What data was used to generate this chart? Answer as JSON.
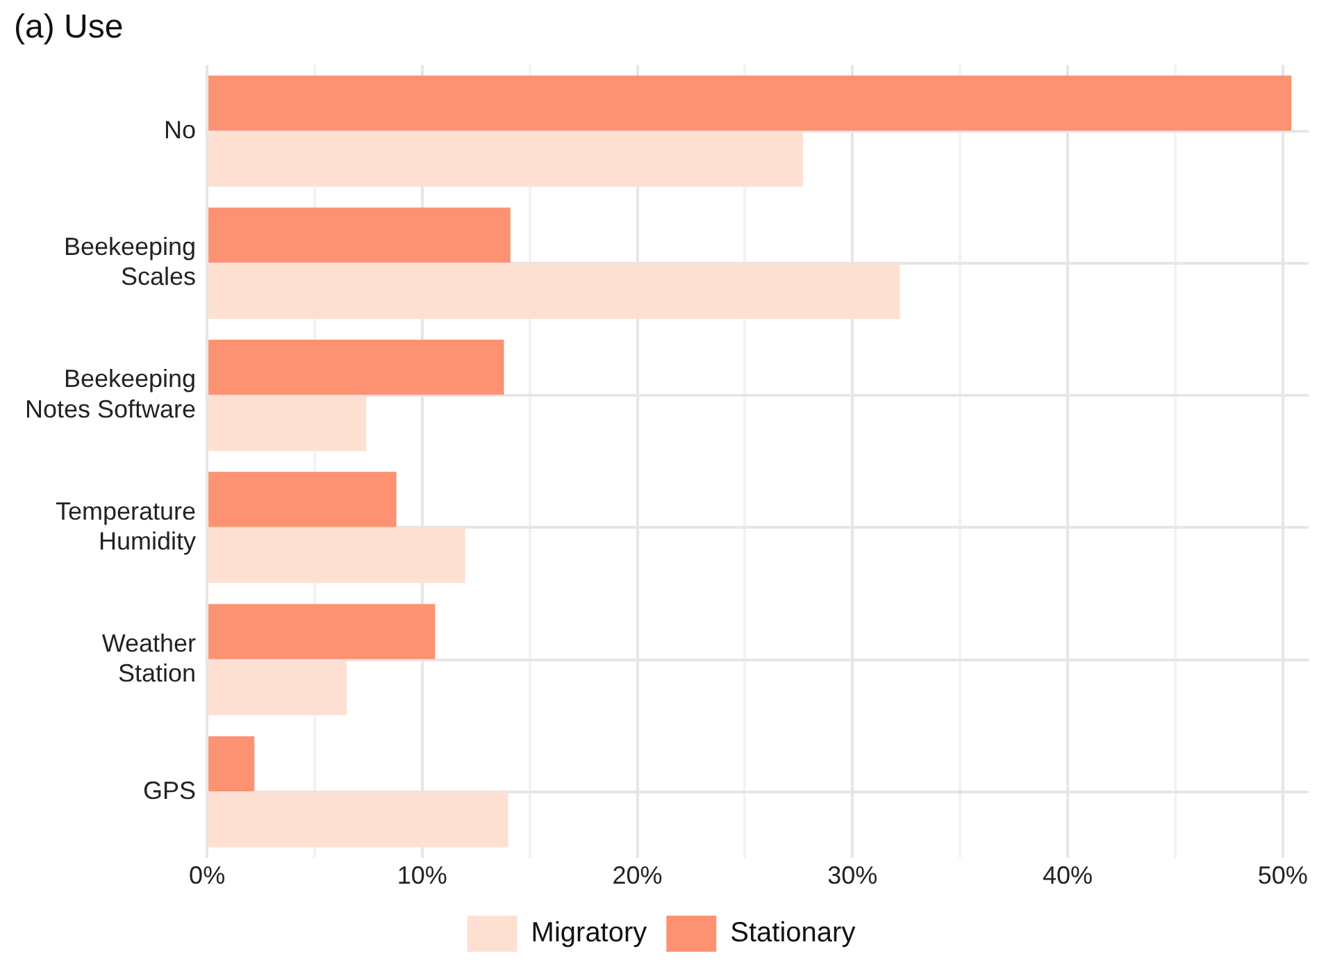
{
  "chart_data": {
    "type": "bar",
    "orientation": "horizontal",
    "title": "(a) Use",
    "categories": [
      "No",
      "Beekeeping Scales",
      "Beekeeping Notes Software",
      "Temperature Humidity",
      "Weather Station",
      "GPS"
    ],
    "series": [
      {
        "name": "Migratory",
        "color": "#fee0d2",
        "values": [
          27.7,
          32.2,
          7.4,
          12.0,
          6.5,
          14.0
        ]
      },
      {
        "name": "Stationary",
        "color": "#fc9272",
        "values": [
          50.4,
          14.1,
          13.8,
          8.8,
          10.6,
          2.2
        ]
      }
    ],
    "xlim": [
      0,
      51.2
    ],
    "xticks": [
      {
        "value": 0,
        "label": "0%"
      },
      {
        "value": 5,
        "label": null
      },
      {
        "value": 10,
        "label": "10%"
      },
      {
        "value": 15,
        "label": null
      },
      {
        "value": 20,
        "label": "20%"
      },
      {
        "value": 25,
        "label": null
      },
      {
        "value": 30,
        "label": "30%"
      },
      {
        "value": 35,
        "label": null
      },
      {
        "value": 40,
        "label": "40%"
      },
      {
        "value": 45,
        "label": null
      },
      {
        "value": 50,
        "label": "50%"
      }
    ],
    "grid": true,
    "legend": "bottom"
  }
}
